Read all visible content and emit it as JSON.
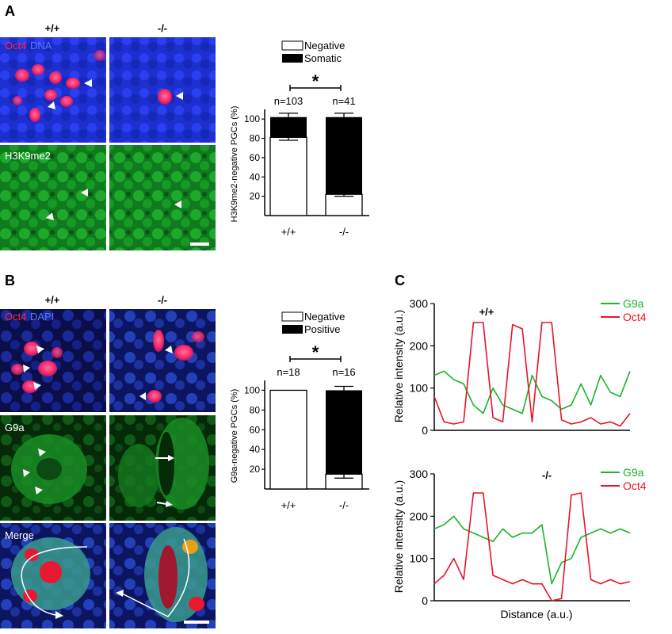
{
  "panel_a": {
    "letter": "A",
    "genotype_wt": "+/+",
    "genotype_ko": "-/-",
    "label_oct4": "Oct4",
    "label_dna": "DNA",
    "label_h3k9me2": "H3K9me2",
    "legend_negative": "Negative",
    "legend_somatic": "Somatic",
    "significance": "*"
  },
  "panel_b": {
    "letter": "B",
    "genotype_wt": "+/+",
    "genotype_ko": "-/-",
    "label_oct4": "Oct4",
    "label_dapi": "DAPI",
    "label_g9a": "G9a",
    "label_merge": "Merge",
    "legend_negative": "Negative",
    "legend_positive": "Positive",
    "significance": "*"
  },
  "panel_c": {
    "letter": "C",
    "legend_g9a": "G9a",
    "legend_oct4": "Oct4",
    "x_label": "Distance (a.u.)",
    "top_title": "+/+",
    "bottom_title": "-/-",
    "y_label_top": "Relative intensity (a.u.)",
    "y_label_bottom": "Relative intensity (a.u.)"
  },
  "colors": {
    "oct4": "#e8142a",
    "dna": "#2a3fe0",
    "green": "#1db32b",
    "bar_black": "#000000"
  },
  "chart_data": [
    {
      "type": "bar",
      "stacked": true,
      "ylabel": "H3K9me2-negative PGCs (%)",
      "categories": [
        "+/+",
        "-/-"
      ],
      "n_labels": [
        "n=103",
        "n=41"
      ],
      "ylim": [
        0,
        110
      ],
      "yticks": [
        20,
        40,
        60,
        80,
        100
      ],
      "series": [
        {
          "name": "Negative",
          "values": [
            81,
            22
          ],
          "error": [
            3,
            2
          ]
        },
        {
          "name": "Somatic",
          "values": [
            21,
            80
          ],
          "error": [
            4,
            4
          ]
        }
      ]
    },
    {
      "type": "bar",
      "stacked": true,
      "ylabel": "G9a-negative PGCs (%)",
      "categories": [
        "+/+",
        "-/-"
      ],
      "n_labels": [
        "n=18",
        "n=16"
      ],
      "ylim": [
        0,
        110
      ],
      "yticks": [
        20,
        40,
        60,
        80,
        100
      ],
      "series": [
        {
          "name": "Negative",
          "values": [
            100,
            15
          ],
          "error": [
            0,
            4
          ]
        },
        {
          "name": "Positive",
          "values": [
            0,
            85
          ],
          "error": [
            0,
            4
          ]
        }
      ]
    },
    {
      "type": "line",
      "title": "+/+",
      "ylabel": "Relative intensity (a.u.)",
      "ylim": [
        0,
        300
      ],
      "yticks": [
        0,
        100,
        200,
        300
      ],
      "x": [
        0,
        5,
        10,
        15,
        20,
        25,
        30,
        35,
        40,
        45,
        50,
        55,
        60,
        65,
        70,
        75,
        80,
        85,
        90,
        95,
        100
      ],
      "series": [
        {
          "name": "G9a",
          "values": [
            130,
            140,
            120,
            110,
            60,
            40,
            100,
            60,
            50,
            40,
            130,
            80,
            70,
            50,
            60,
            110,
            60,
            130,
            90,
            80,
            140
          ]
        },
        {
          "name": "Oct4",
          "values": [
            80,
            20,
            15,
            20,
            255,
            255,
            30,
            20,
            250,
            240,
            20,
            255,
            255,
            25,
            15,
            20,
            30,
            15,
            20,
            10,
            40
          ]
        }
      ]
    },
    {
      "type": "line",
      "title": "-/-",
      "ylabel": "Relative intensity (a.u.)",
      "ylim": [
        0,
        300
      ],
      "yticks": [
        0,
        100,
        200,
        300
      ],
      "x": [
        0,
        5,
        10,
        15,
        20,
        25,
        30,
        35,
        40,
        45,
        50,
        55,
        60,
        65,
        70,
        75,
        80,
        85,
        90,
        95,
        100
      ],
      "series": [
        {
          "name": "G9a",
          "values": [
            170,
            180,
            200,
            170,
            160,
            150,
            140,
            170,
            150,
            160,
            160,
            180,
            40,
            90,
            100,
            150,
            160,
            170,
            160,
            170,
            160
          ]
        },
        {
          "name": "Oct4",
          "values": [
            40,
            60,
            100,
            50,
            255,
            255,
            60,
            50,
            40,
            50,
            40,
            40,
            0,
            5,
            250,
            255,
            50,
            40,
            50,
            40,
            45
          ]
        }
      ]
    }
  ]
}
